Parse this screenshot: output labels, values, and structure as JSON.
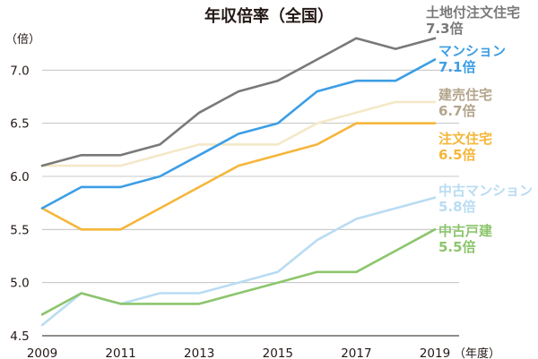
{
  "chart_data": {
    "type": "line",
    "title": "年収倍率（全国）",
    "ylabel": "（倍）",
    "xlabel": "（年度）",
    "ylim": [
      4.5,
      7.5
    ],
    "yticks": [
      "4.5",
      "5.0",
      "5.5",
      "6.0",
      "6.5",
      "7.0"
    ],
    "xticks": [
      "2009",
      "2011",
      "2013",
      "2015",
      "2017",
      "2019"
    ],
    "grid": true,
    "legend": "right (inline labels)",
    "x": [
      2009,
      2010,
      2011,
      2012,
      2013,
      2014,
      2015,
      2016,
      2017,
      2018,
      2019
    ],
    "series": [
      {
        "name": "土地付注文住宅",
        "value_label": "7.3倍",
        "color": "#797979",
        "values": [
          6.1,
          6.2,
          6.2,
          6.3,
          6.6,
          6.8,
          6.9,
          7.1,
          7.3,
          7.2,
          7.3
        ]
      },
      {
        "name": "マンション",
        "value_label": "7.1倍",
        "color": "#3c9ee5",
        "values": [
          5.7,
          5.9,
          5.9,
          6.0,
          6.2,
          6.4,
          6.5,
          6.8,
          6.9,
          6.9,
          7.1
        ]
      },
      {
        "name": "建売住宅",
        "value_label": "6.7倍",
        "color": "#f4e8c8",
        "label_color": "#b4a58c",
        "values": [
          6.1,
          6.1,
          6.1,
          6.2,
          6.3,
          6.3,
          6.3,
          6.5,
          6.6,
          6.7,
          6.7
        ]
      },
      {
        "name": "注文住宅",
        "value_label": "6.5倍",
        "color": "#f5b63a",
        "values": [
          5.7,
          5.5,
          5.5,
          5.7,
          5.9,
          6.1,
          6.2,
          6.3,
          6.5,
          6.5,
          6.5
        ]
      },
      {
        "name": "中古マンション",
        "value_label": "5.8倍",
        "color": "#b9dcf2",
        "values": [
          4.6,
          4.9,
          4.8,
          4.9,
          4.9,
          5.0,
          5.1,
          5.4,
          5.6,
          5.7,
          5.8
        ]
      },
      {
        "name": "中古戸建",
        "value_label": "5.5倍",
        "color": "#8cc56c",
        "values": [
          4.7,
          4.9,
          4.8,
          4.8,
          4.8,
          4.9,
          5.0,
          5.1,
          5.1,
          5.3,
          5.5
        ]
      }
    ]
  }
}
